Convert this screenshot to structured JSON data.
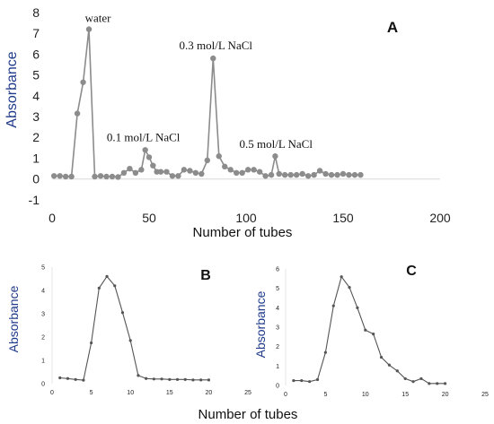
{
  "chart_data": [
    {
      "panel": "A",
      "type": "line",
      "xlabel": "Number of tubes",
      "ylabel": "Absorbance",
      "xlim": [
        0,
        200
      ],
      "ylim": [
        -1,
        8
      ],
      "xticks": [
        0,
        50,
        100,
        150,
        200
      ],
      "yticks": [
        -1,
        0,
        1,
        2,
        3,
        4,
        5,
        6,
        7,
        8
      ],
      "annotations": [
        {
          "text": "water",
          "x": 19,
          "y": 7.2
        },
        {
          "text": "0.1 mol/L NaCl",
          "x": 48,
          "y": 1.4
        },
        {
          "text": "0.3 mol/L NaCl",
          "x": 83,
          "y": 5.8
        },
        {
          "text": "0.5 mol/L NaCl",
          "x": 114,
          "y": 1.1
        }
      ],
      "color": "#8c8c8c",
      "x": [
        1,
        4,
        7,
        10,
        13,
        16,
        19,
        22,
        25,
        28,
        31,
        34,
        37,
        40,
        43,
        46,
        48,
        50,
        52,
        54,
        56,
        59,
        62,
        65,
        68,
        71,
        74,
        77,
        80,
        83,
        86,
        89,
        92,
        95,
        98,
        101,
        104,
        107,
        110,
        113,
        115,
        117,
        120,
        123,
        126,
        129,
        132,
        135,
        138,
        141,
        144,
        147,
        150,
        153,
        156,
        159
      ],
      "y": [
        0.15,
        0.15,
        0.12,
        0.12,
        3.15,
        4.65,
        7.2,
        0.12,
        0.15,
        0.12,
        0.12,
        0.1,
        0.3,
        0.5,
        0.3,
        0.45,
        1.4,
        1.05,
        0.65,
        0.35,
        0.35,
        0.35,
        0.15,
        0.15,
        0.45,
        0.4,
        0.3,
        0.25,
        0.9,
        5.8,
        1.1,
        0.6,
        0.45,
        0.3,
        0.3,
        0.45,
        0.45,
        0.35,
        0.15,
        0.2,
        1.1,
        0.25,
        0.2,
        0.2,
        0.2,
        0.25,
        0.15,
        0.2,
        0.4,
        0.25,
        0.2,
        0.2,
        0.25,
        0.2,
        0.2,
        0.2
      ]
    },
    {
      "panel": "B",
      "type": "line",
      "xlabel": "",
      "ylabel": "Absorbance",
      "xlim": [
        0,
        25
      ],
      "ylim": [
        0,
        5
      ],
      "xticks": [
        0,
        5,
        10,
        15,
        20,
        25
      ],
      "yticks": [
        0,
        1,
        2,
        3,
        4,
        5
      ],
      "color": "#555555",
      "x": [
        1,
        2,
        3,
        4,
        5,
        6,
        7,
        8,
        9,
        10,
        11,
        12,
        13,
        14,
        15,
        16,
        17,
        18,
        19,
        20
      ],
      "y": [
        0.25,
        0.22,
        0.18,
        0.15,
        1.75,
        4.1,
        4.6,
        4.2,
        3.05,
        1.85,
        0.35,
        0.22,
        0.2,
        0.2,
        0.18,
        0.18,
        0.18,
        0.16,
        0.16,
        0.16
      ]
    },
    {
      "panel": "C",
      "type": "line",
      "xlabel": "",
      "ylabel": "Absorbance",
      "xlim": [
        0,
        25
      ],
      "ylim": [
        0,
        6
      ],
      "xticks": [
        0,
        5,
        10,
        15,
        20,
        25
      ],
      "yticks": [
        0,
        1,
        2,
        3,
        4,
        5,
        6
      ],
      "color": "#555555",
      "x": [
        1,
        2,
        3,
        4,
        5,
        6,
        7,
        8,
        9,
        10,
        11,
        12,
        13,
        14,
        15,
        16,
        17,
        18,
        19,
        20
      ],
      "y": [
        0.25,
        0.25,
        0.2,
        0.3,
        1.7,
        4.1,
        5.6,
        5.05,
        4.0,
        2.85,
        2.65,
        1.45,
        1.05,
        0.75,
        0.35,
        0.2,
        0.35,
        0.1,
        0.1,
        0.1
      ]
    }
  ],
  "shared_xlabel": "Number of tubes"
}
